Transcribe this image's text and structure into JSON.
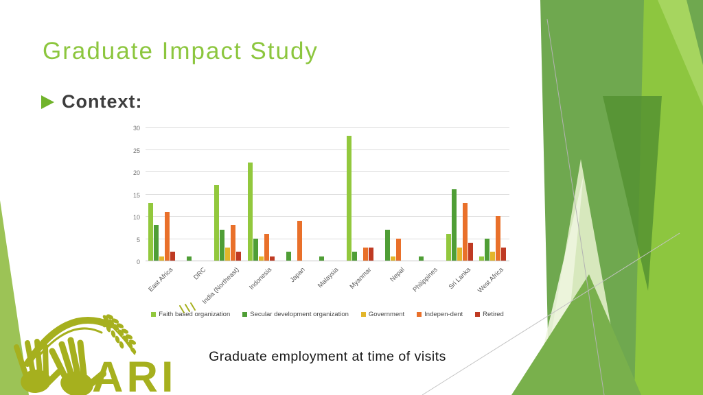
{
  "slide": {
    "title": "Graduate Impact Study",
    "bullet_label": "Context:",
    "caption": "Graduate employment at time of visits",
    "logo_text": "ARI"
  },
  "colors": {
    "title_green": "#8cc63e",
    "bullet_green": "#70b32b",
    "logo_olive": "#a6b01e",
    "decor_greens": [
      "#8dc63f",
      "#6fa84f",
      "#559231",
      "#9cc356",
      "#dcebc3"
    ],
    "gridline": "#dcdcdc",
    "axis_text": "#595959"
  },
  "chart_data": {
    "type": "bar",
    "title": "",
    "categories": [
      "East Africa",
      "DRC",
      "India (Northeast)",
      "Indonesia",
      "Japan",
      "Malaysia",
      "Myanmar",
      "Nepal",
      "Philippines",
      "Sri Lanka",
      "West Africa"
    ],
    "series": [
      {
        "name": "Faith based organization",
        "color": "#92c83d",
        "values": [
          13,
          0,
          17,
          22,
          0,
          0,
          28,
          0,
          0,
          6,
          1
        ]
      },
      {
        "name": "Secular development organization",
        "color": "#4f9e36",
        "values": [
          8,
          1,
          7,
          5,
          2,
          1,
          2,
          7,
          1,
          16,
          5
        ]
      },
      {
        "name": "Government",
        "color": "#e3b62b",
        "values": [
          1,
          0,
          3,
          1,
          0,
          0,
          0,
          1,
          0,
          3,
          2
        ]
      },
      {
        "name": "Indepen-dent",
        "color": "#e9702a",
        "values": [
          11,
          0,
          8,
          6,
          9,
          0,
          3,
          5,
          0,
          13,
          10
        ]
      },
      {
        "name": "Retired",
        "color": "#bf3a23",
        "values": [
          2,
          0,
          2,
          1,
          0,
          0,
          3,
          0,
          0,
          4,
          3
        ]
      }
    ],
    "xlabel": "",
    "ylabel": "",
    "ylim": [
      0,
      30
    ],
    "yticks": [
      0,
      5,
      10,
      15,
      20,
      25,
      30
    ],
    "grid": true,
    "legend_position": "bottom"
  }
}
